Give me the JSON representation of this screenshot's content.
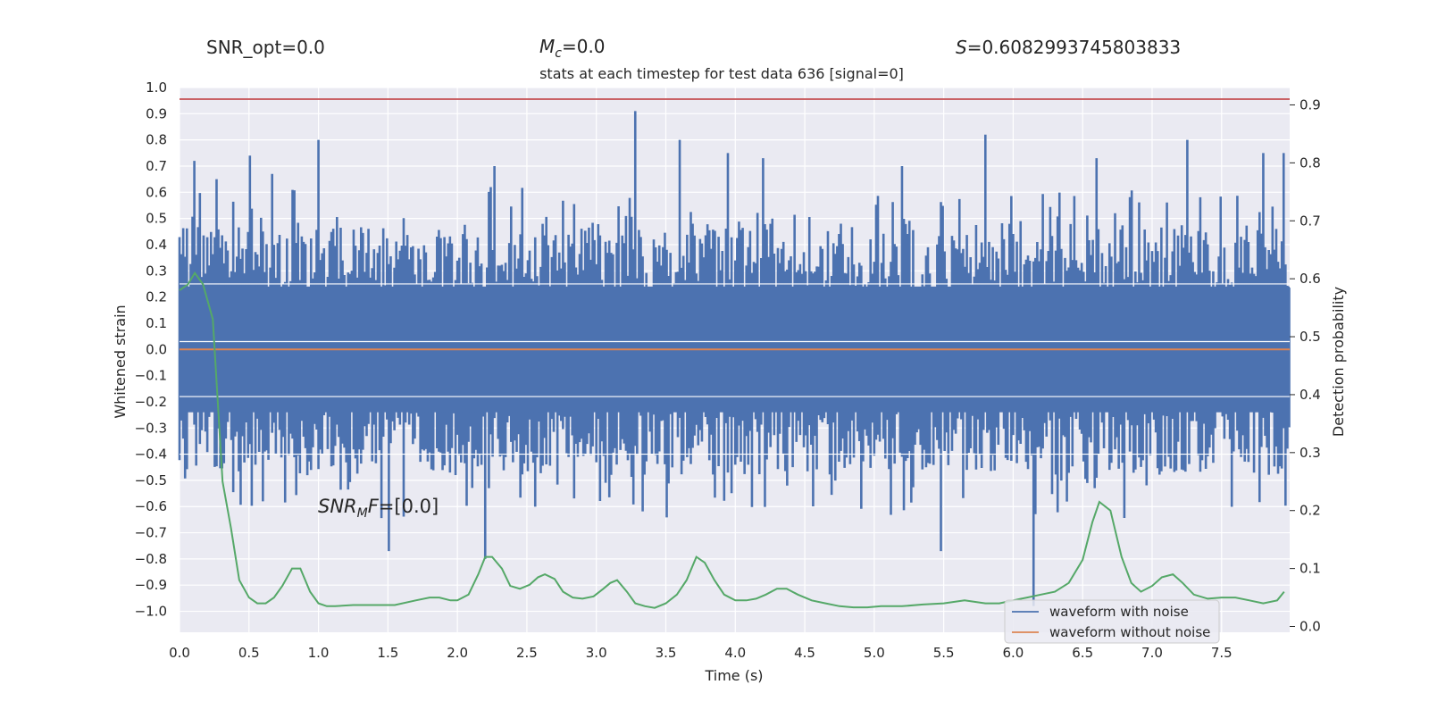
{
  "header": {
    "snr_opt": "SNR_opt=0.0",
    "mc_symbol": "M",
    "mc_sub": "c",
    "mc_value": "=0.0",
    "s_symbol": "S",
    "s_value": "=0.6082993745803833"
  },
  "annotation": {
    "snr_symbol": "SNR",
    "snr_sub": "M",
    "snr_symbol2": "F",
    "snr_value": "=[0.0]"
  },
  "chart_data": {
    "type": "line",
    "title": "stats at each timestep for test data 636 [signal=0]",
    "xlabel": "Time (s)",
    "ylabel_left": "Whitened strain",
    "ylabel_right": "Detection probability",
    "xlim": [
      0.0,
      8.0
    ],
    "ylim_left": [
      -1.08,
      1.0
    ],
    "ylim_right": [
      -0.01,
      0.93
    ],
    "x_ticks": [
      "0.0",
      "0.5",
      "1.0",
      "1.5",
      "2.0",
      "2.5",
      "3.0",
      "3.5",
      "4.0",
      "4.5",
      "5.0",
      "5.5",
      "6.0",
      "6.5",
      "7.0",
      "7.5"
    ],
    "y_left_ticks": [
      "1.0",
      "0.9",
      "0.8",
      "0.7",
      "0.6",
      "0.5",
      "0.4",
      "0.3",
      "0.2",
      "0.1",
      "0.0",
      "−0.1",
      "−0.2",
      "−0.3",
      "−0.4",
      "−0.5",
      "−0.6",
      "−0.7",
      "−0.8",
      "−0.9",
      "−1.0"
    ],
    "y_right_ticks": [
      "0.9",
      "0.8",
      "0.7",
      "0.6",
      "0.5",
      "0.4",
      "0.3",
      "0.2",
      "0.1",
      "0.0"
    ],
    "threshold": 0.91,
    "colors": {
      "noise": "#4c72b0",
      "clean": "#dd8452",
      "probability": "#55a868",
      "threshold": "#c44e52",
      "plot_bg": "#eaeaf2",
      "grid": "#ffffff"
    },
    "series": [
      {
        "name": "waveform with noise",
        "axis": "left",
        "sample_count": 600,
        "typical_amplitude": 0.4,
        "spikes": [
          [
            0.1,
            0.72
          ],
          [
            0.27,
            0.65
          ],
          [
            0.5,
            0.74
          ],
          [
            0.67,
            0.67
          ],
          [
            1.0,
            0.8
          ],
          [
            1.5,
            -0.77
          ],
          [
            2.27,
            0.7
          ],
          [
            2.2,
            -0.8
          ],
          [
            3.28,
            0.91
          ],
          [
            3.6,
            0.8
          ],
          [
            3.95,
            0.75
          ],
          [
            4.2,
            0.73
          ],
          [
            5.2,
            0.7
          ],
          [
            5.8,
            0.82
          ],
          [
            6.15,
            -0.98
          ],
          [
            6.6,
            0.73
          ],
          [
            7.25,
            0.8
          ],
          [
            7.8,
            0.75
          ],
          [
            7.95,
            0.75
          ],
          [
            5.48,
            -0.77
          ]
        ]
      },
      {
        "name": "waveform without noise",
        "axis": "left",
        "constant": 0.0
      },
      {
        "name": "detection probability",
        "axis": "right",
        "x": [
          0.0,
          0.06,
          0.11,
          0.17,
          0.24,
          0.31,
          0.37,
          0.43,
          0.5,
          0.56,
          0.62,
          0.68,
          0.74,
          0.81,
          0.87,
          0.94,
          1.0,
          1.06,
          1.12,
          1.25,
          1.4,
          1.55,
          1.7,
          1.8,
          1.87,
          1.95,
          2.0,
          2.08,
          2.15,
          2.2,
          2.25,
          2.32,
          2.38,
          2.45,
          2.52,
          2.58,
          2.63,
          2.7,
          2.76,
          2.83,
          2.9,
          2.98,
          3.05,
          3.1,
          3.15,
          3.22,
          3.28,
          3.35,
          3.42,
          3.5,
          3.58,
          3.65,
          3.72,
          3.78,
          3.85,
          3.92,
          4.0,
          4.08,
          4.15,
          4.22,
          4.3,
          4.37,
          4.45,
          4.55,
          4.65,
          4.75,
          4.85,
          4.95,
          5.05,
          5.2,
          5.35,
          5.5,
          5.65,
          5.8,
          5.9,
          6.0,
          6.1,
          6.2,
          6.3,
          6.4,
          6.5,
          6.57,
          6.62,
          6.7,
          6.78,
          6.85,
          6.92,
          7.0,
          7.07,
          7.15,
          7.22,
          7.3,
          7.4,
          7.5,
          7.6,
          7.7,
          7.8,
          7.9,
          7.95
        ],
        "y": [
          0.58,
          0.59,
          0.61,
          0.59,
          0.53,
          0.25,
          0.17,
          0.08,
          0.05,
          0.04,
          0.04,
          0.05,
          0.07,
          0.1,
          0.1,
          0.06,
          0.04,
          0.035,
          0.035,
          0.037,
          0.037,
          0.037,
          0.045,
          0.05,
          0.05,
          0.045,
          0.045,
          0.055,
          0.09,
          0.12,
          0.12,
          0.1,
          0.07,
          0.065,
          0.072,
          0.085,
          0.09,
          0.082,
          0.06,
          0.05,
          0.048,
          0.052,
          0.065,
          0.075,
          0.08,
          0.06,
          0.04,
          0.035,
          0.032,
          0.04,
          0.055,
          0.08,
          0.12,
          0.11,
          0.08,
          0.055,
          0.045,
          0.045,
          0.048,
          0.055,
          0.065,
          0.065,
          0.055,
          0.045,
          0.04,
          0.035,
          0.033,
          0.033,
          0.035,
          0.035,
          0.038,
          0.04,
          0.045,
          0.04,
          0.04,
          0.045,
          0.05,
          0.055,
          0.06,
          0.075,
          0.115,
          0.18,
          0.215,
          0.2,
          0.12,
          0.075,
          0.06,
          0.07,
          0.085,
          0.09,
          0.075,
          0.055,
          0.048,
          0.05,
          0.05,
          0.045,
          0.04,
          0.045,
          0.06
        ]
      }
    ],
    "legend_position": "lower-right"
  }
}
